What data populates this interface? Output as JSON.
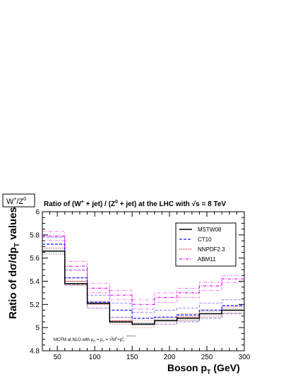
{
  "chart_data": {
    "type": "line",
    "step": true,
    "tag": {
      "main": "W",
      "sup1": "+",
      "mid": "/Z",
      "sup2": "0"
    },
    "title": {
      "pre": "Ratio of (W",
      "sup1": "+",
      "mid1": " + jet) / (Z",
      "sup2": "0",
      "mid2": " + jet) at the LHC with ",
      "sqrt": "√s",
      "post": " = 8 TeV"
    },
    "ylabel": "Ratio of dσ/dp",
    "ylabel_sub": "T",
    "ylabel_post": " values",
    "xlabel": "Boson p",
    "xlabel_sub": "T",
    "xlabel_post": "  (GeV)",
    "xlim": [
      30,
      300
    ],
    "ylim": [
      4.8,
      6.0
    ],
    "x_ticks": [
      "50",
      "100",
      "150",
      "200",
      "250",
      "300"
    ],
    "y_ticks": [
      "4.8",
      "5",
      "5.2",
      "5.4",
      "5.6",
      "5.8",
      "6"
    ],
    "bin_edges": [
      30,
      60,
      90,
      120,
      150,
      180,
      210,
      240,
      270,
      300
    ],
    "annotation": {
      "pre": "MCFM at NLO with ",
      "mu": "μ",
      "sub_r": "R",
      "eq": " = ",
      "sub_f": "F",
      "eq2": " = ",
      "root": "M",
      "sup_m": "2",
      "plus": "+p",
      "sup_p": "2",
      "sub_t": "T"
    },
    "legend_position": "top-right",
    "series": [
      {
        "name": "MSTW08",
        "color": "#000000",
        "dash": "solid",
        "values": [
          5.66,
          5.38,
          5.21,
          5.05,
          5.03,
          5.06,
          5.08,
          5.12,
          5.15
        ],
        "upper": [
          5.68,
          5.4,
          5.22,
          5.06,
          5.04,
          5.075,
          5.1,
          5.14,
          5.17
        ],
        "lower": [
          5.645,
          5.365,
          5.2,
          5.04,
          5.02,
          5.05,
          5.065,
          5.1,
          5.13
        ]
      },
      {
        "name": "CT10",
        "color": "#1a1aff",
        "dash": "dashed",
        "values": [
          5.72,
          5.43,
          5.22,
          5.15,
          5.08,
          5.09,
          5.11,
          5.15,
          5.19
        ],
        "upper": [
          5.78,
          5.5,
          5.28,
          5.21,
          5.13,
          5.15,
          5.17,
          5.21,
          5.24
        ],
        "lower": [
          5.66,
          5.37,
          5.17,
          5.09,
          5.03,
          5.03,
          5.05,
          5.08,
          5.12
        ]
      },
      {
        "name": "NNPDF2.3",
        "color": "#d40000",
        "dash": "dotted",
        "values": [
          5.66,
          5.4,
          5.2,
          5.06,
          5.03,
          5.06,
          5.09,
          5.12,
          5.15
        ],
        "upper": [
          5.69,
          5.43,
          5.23,
          5.09,
          5.06,
          5.09,
          5.12,
          5.15,
          5.18
        ],
        "lower": [
          5.63,
          5.37,
          5.17,
          5.03,
          5.0,
          5.03,
          5.06,
          5.09,
          5.12
        ]
      },
      {
        "name": "ABM11",
        "color": "#ee00ee",
        "dash": "dashdot",
        "values": [
          5.79,
          5.53,
          5.34,
          5.28,
          5.2,
          5.26,
          5.3,
          5.36,
          5.42
        ],
        "upper": [
          5.83,
          5.57,
          5.38,
          5.32,
          5.24,
          5.3,
          5.34,
          5.39,
          5.45
        ],
        "lower": [
          5.75,
          5.49,
          5.3,
          5.24,
          5.16,
          5.22,
          5.26,
          5.32,
          5.39
        ]
      }
    ]
  }
}
